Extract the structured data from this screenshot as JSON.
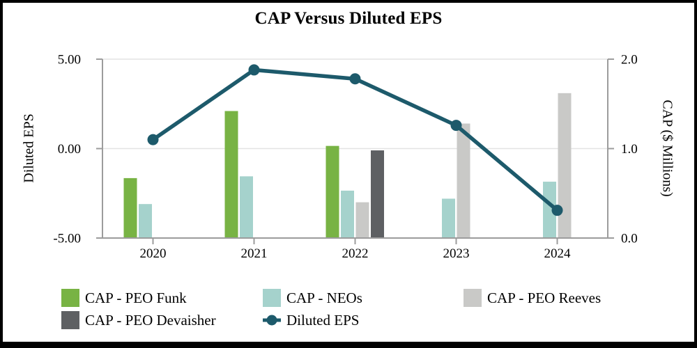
{
  "chart_data": {
    "type": "combo-bar-line",
    "title": "CAP Versus Diluted EPS",
    "categories": [
      "2020",
      "2021",
      "2022",
      "2023",
      "2024"
    ],
    "bar_series": [
      {
        "name": "CAP - PEO Funk",
        "color": "#78B344",
        "axis": "right",
        "values": [
          0.67,
          1.42,
          1.03,
          null,
          null
        ]
      },
      {
        "name": "CAP - NEOs",
        "color": "#A5D2CC",
        "axis": "right",
        "values": [
          0.38,
          0.69,
          0.53,
          0.44,
          0.63
        ]
      },
      {
        "name": "CAP - PEO Reeves",
        "color": "#C9C9C7",
        "axis": "right",
        "values": [
          null,
          null,
          0.4,
          1.28,
          1.62
        ]
      },
      {
        "name": "CAP - PEO Devaisher",
        "color": "#5E6063",
        "axis": "right",
        "values": [
          null,
          null,
          0.98,
          null,
          null
        ]
      }
    ],
    "line_series": {
      "name": "Diluted EPS",
      "color": "#1D5A6B",
      "axis": "left",
      "values": [
        0.5,
        4.4,
        3.9,
        1.3,
        -3.45
      ]
    },
    "axes": {
      "left": {
        "title": "Diluted EPS",
        "min": -5,
        "max": 5,
        "tick_values": [
          5,
          0,
          -5
        ],
        "tick_labels": [
          "5.00",
          "0.00",
          "-5.00"
        ]
      },
      "right": {
        "title": "CAP ($ Millions)",
        "min": 0,
        "max": 2,
        "tick_values": [
          2,
          1,
          0
        ],
        "tick_labels": [
          "2.0",
          "1.0",
          "0.0"
        ]
      },
      "x": {
        "tick_labels": [
          "2020",
          "2021",
          "2022",
          "2023",
          "2024"
        ]
      }
    },
    "grid": "horizontal",
    "legend": {
      "position": "bottom",
      "items": [
        {
          "label": "CAP - PEO Funk",
          "swatch": "square",
          "color": "#78B344",
          "row": 0,
          "col": 0
        },
        {
          "label": "CAP - NEOs",
          "swatch": "square",
          "color": "#A5D2CC",
          "row": 0,
          "col": 1
        },
        {
          "label": "CAP - PEO Reeves",
          "swatch": "square",
          "color": "#C9C9C7",
          "row": 0,
          "col": 2
        },
        {
          "label": "CAP - PEO Devaisher",
          "swatch": "square",
          "color": "#5E6063",
          "row": 1,
          "col": 0
        },
        {
          "label": "Diluted EPS",
          "swatch": "line-marker",
          "color": "#1D5A6B",
          "row": 1,
          "col": 1
        }
      ]
    },
    "colors": {
      "gridline": "#E3E3E3",
      "axis_line": "#9C9C9C",
      "text": "#000000",
      "background": "#FFFFFF",
      "frame_border": "#000000"
    }
  }
}
